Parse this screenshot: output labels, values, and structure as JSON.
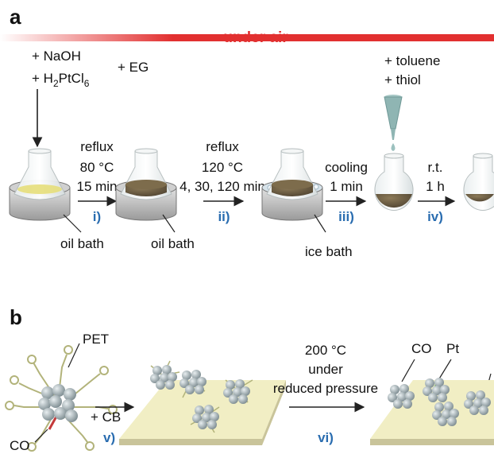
{
  "panel_a": {
    "letter": "a",
    "banner": "under air",
    "reagents": {
      "naoh": "+ NaOH",
      "h2ptcl6_prefix": "+ H",
      "h2ptcl6_sub1": "2",
      "h2ptcl6_mid": "PtCl",
      "h2ptcl6_sub2": "6",
      "eg": "+ EG"
    },
    "additives": {
      "toluene": "+ toluene",
      "thiol": "+ thiol"
    },
    "steps": [
      {
        "numeral": "i)",
        "line1": "reflux",
        "line2": "80 °C",
        "line3": "15 min"
      },
      {
        "numeral": "ii)",
        "line1": "reflux",
        "line2": "120 °C",
        "line3": "4, 30, 120 min"
      },
      {
        "numeral": "iii)",
        "line1": "cooling",
        "line2": "1 min"
      },
      {
        "numeral": "iv)",
        "line1": "r.t.",
        "line2": "1 h"
      }
    ],
    "baths": [
      "oil bath",
      "oil bath",
      "ice bath"
    ]
  },
  "panel_b": {
    "letter": "b",
    "labels": {
      "pet": "PET",
      "co_bottom": "CO",
      "co_top": "CO",
      "pt": "Pt"
    },
    "step_v": {
      "numeral": "v)",
      "text": "+ CB"
    },
    "step_vi": {
      "numeral": "vi)",
      "line1": "200 °C",
      "line2": "under",
      "line3": "reduced pressure"
    }
  },
  "colors": {
    "banner": "#e23030",
    "step_numeral": "#2a6db0",
    "solution": "#6b5a3e",
    "support": "#f1eec4"
  }
}
